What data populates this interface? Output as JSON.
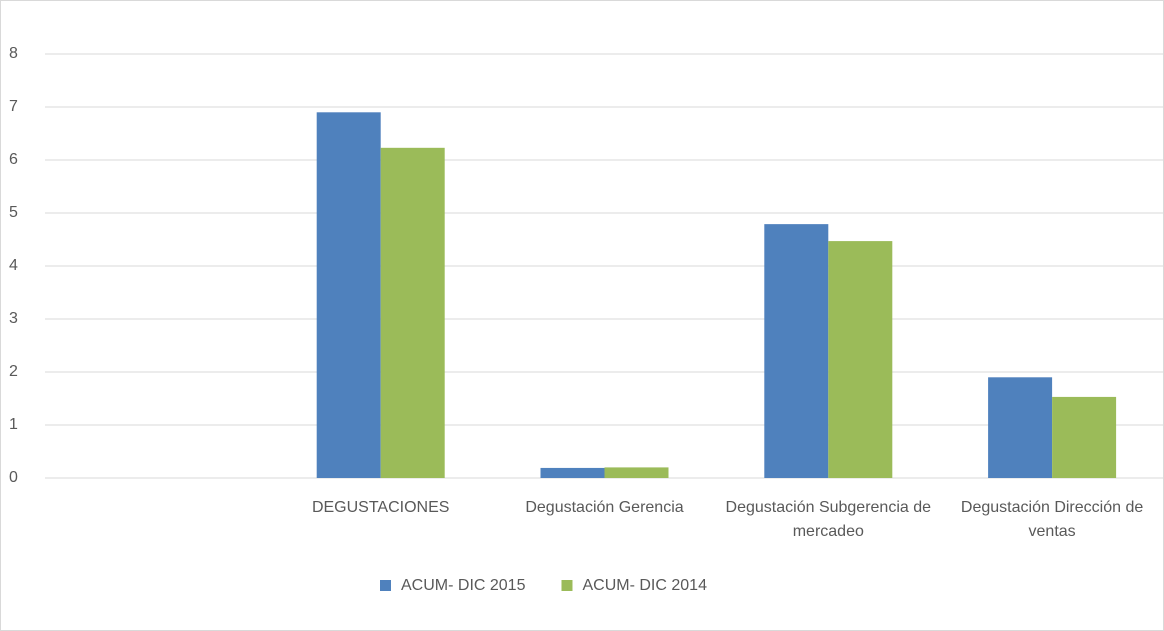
{
  "chart_data": {
    "type": "bar",
    "categories": [
      null,
      "DEGUSTACIONES",
      "Degustación Gerencia",
      "Degustación Subgerencia de mercadeo",
      "Degustación Dirección de ventas"
    ],
    "series": [
      {
        "name": "ACUM- DIC 2015",
        "color": "#4f81bd",
        "values": [
          null,
          6.9,
          0.19,
          4.79,
          1.9
        ]
      },
      {
        "name": "ACUM- DIC  2014",
        "color": "#9bbb59",
        "values": [
          null,
          6.23,
          0.2,
          4.47,
          1.53
        ]
      }
    ],
    "ylim": [
      0,
      8
    ],
    "yticks": [
      0,
      1,
      2,
      3,
      4,
      5,
      6,
      7,
      8
    ],
    "grid": true,
    "legend": "bottom"
  }
}
